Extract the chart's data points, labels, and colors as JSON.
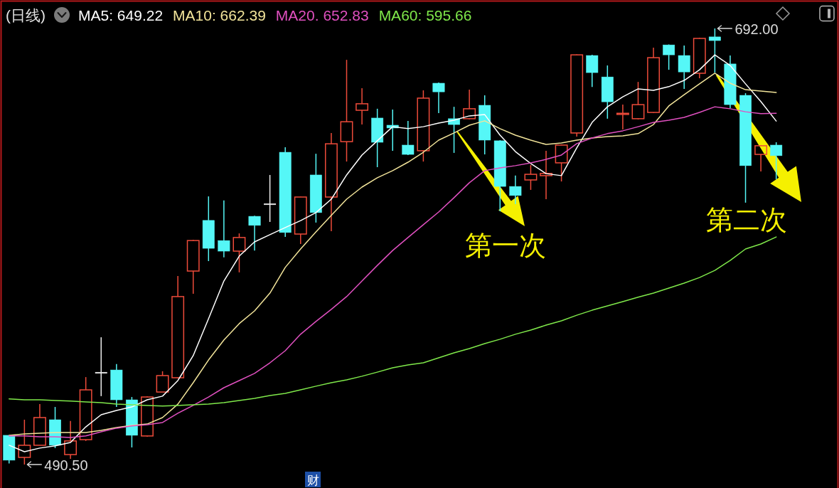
{
  "chart_data": {
    "type": "candlestick",
    "title": "(日线)",
    "legend": "top left",
    "categories": [
      null,
      null,
      null,
      null,
      null,
      null,
      null,
      null,
      null,
      null,
      null,
      null,
      null,
      null,
      null,
      null,
      null,
      null,
      null,
      null,
      null,
      null,
      null,
      null,
      null,
      null,
      null,
      null,
      null,
      null,
      null,
      null,
      null,
      null,
      null,
      null,
      null,
      null,
      null,
      null,
      null,
      null,
      null,
      null,
      null,
      null,
      null,
      null,
      null,
      null,
      null
    ],
    "ohlc": [
      [
        504.0,
        504.0,
        491.0,
        492.5
      ],
      [
        493.8,
        511.2,
        490.5,
        499.4
      ],
      [
        499.4,
        518.4,
        499.4,
        512.2
      ],
      [
        511.2,
        517.1,
        498.1,
        499.4
      ],
      [
        495.1,
        510.6,
        493.1,
        501.4
      ],
      [
        502.0,
        530.9,
        501.4,
        525.0
      ],
      [
        532.9,
        549.3,
        522.1,
        532.9
      ],
      [
        534.2,
        536.9,
        517.1,
        520.4
      ],
      [
        520.4,
        521.7,
        498.4,
        504.0
      ],
      [
        503.7,
        522.0,
        503.4,
        521.7
      ],
      [
        524.0,
        533.6,
        524.0,
        531.6
      ],
      [
        530.6,
        577.6,
        530.3,
        568.1
      ],
      [
        579.9,
        594.3,
        569.4,
        594.0
      ],
      [
        603.3,
        614.4,
        584.5,
        590.4
      ],
      [
        594.0,
        612.5,
        586.2,
        589.1
      ],
      [
        589.1,
        597.3,
        579.3,
        595.4
      ],
      [
        605.2,
        605.5,
        589.4,
        601.0
      ],
      [
        610.8,
        624.3,
        602.6,
        610.8
      ],
      [
        634.8,
        637.1,
        595.7,
        597.7
      ],
      [
        597.0,
        614.3,
        592.4,
        614.1
      ],
      [
        624.3,
        634.1,
        602.3,
        606.9
      ],
      [
        614.1,
        643.7,
        598.3,
        638.7
      ],
      [
        639.7,
        677.5,
        630.5,
        648.9
      ],
      [
        654.2,
        664.4,
        647.6,
        657.2
      ],
      [
        650.6,
        654.9,
        627.9,
        639.4
      ],
      [
        647.3,
        654.5,
        635.5,
        646.0
      ],
      [
        638.1,
        649.3,
        633.5,
        633.8
      ],
      [
        635.5,
        663.4,
        630.5,
        659.8
      ],
      [
        666.7,
        667.0,
        652.9,
        662.7
      ],
      [
        650.3,
        655.8,
        634.5,
        647.6
      ],
      [
        650.3,
        663.7,
        650.0,
        654.9
      ],
      [
        656.5,
        661.1,
        633.8,
        640.4
      ],
      [
        640.1,
        640.4,
        607.5,
        619.0
      ],
      [
        619.0,
        624.0,
        610.8,
        614.8
      ],
      [
        622.0,
        628.9,
        617.4,
        624.6
      ],
      [
        624.0,
        635.5,
        613.1,
        625.0
      ],
      [
        629.9,
        638.4,
        621.3,
        638.1
      ],
      [
        643.7,
        680.0,
        642.0,
        679.8
      ],
      [
        679.5,
        679.8,
        665.0,
        671.6
      ],
      [
        669.6,
        674.9,
        650.3,
        658.1
      ],
      [
        652.3,
        656.8,
        645.3,
        652.8
      ],
      [
        650.3,
        667.3,
        650.0,
        656.8
      ],
      [
        653.2,
        683.1,
        653.0,
        678.5
      ],
      [
        684.4,
        684.6,
        672.9,
        679.8
      ],
      [
        679.5,
        684.1,
        664.1,
        671.9
      ],
      [
        671.3,
        687.7,
        669.0,
        687.4
      ],
      [
        688.1,
        692.0,
        671.6,
        686.4
      ],
      [
        675.6,
        679.5,
        655.2,
        656.8
      ],
      [
        661.1,
        662.1,
        611.5,
        628.6
      ],
      [
        633.8,
        638.0,
        625.9,
        637.8
      ],
      [
        638.1,
        639.4,
        622.3,
        633.2
      ]
    ],
    "colors": [
      "#55f7f7",
      "#ee4b3a",
      "#ee4b3a",
      "#55f7f7",
      "#ee4b3a",
      "#ee4b3a",
      "#eeeeee",
      "#55f7f7",
      "#55f7f7",
      "#ee4b3a",
      "#ee4b3a",
      "#ee4b3a",
      "#ee4b3a",
      "#55f7f7",
      "#55f7f7",
      "#ee4b3a",
      "#55f7f7",
      "#eeeeee",
      "#55f7f7",
      "#ee4b3a",
      "#55f7f7",
      "#ee4b3a",
      "#ee4b3a",
      "#ee4b3a",
      "#55f7f7",
      "#55f7f7",
      "#55f7f7",
      "#ee4b3a",
      "#55f7f7",
      "#55f7f7",
      "#ee4b3a",
      "#55f7f7",
      "#55f7f7",
      "#55f7f7",
      "#ee4b3a",
      "#ee4b3a",
      "#ee4b3a",
      "#ee4b3a",
      "#55f7f7",
      "#55f7f7",
      "#ee4b3a",
      "#ee4b3a",
      "#ee4b3a",
      "#55f7f7",
      "#55f7f7",
      "#ee4b3a",
      "#55f7f7",
      "#55f7f7",
      "#55f7f7",
      "#ee4b3a",
      "#55f7f7"
    ],
    "series": [
      {
        "name": "MA5: 649.22",
        "type": "line",
        "color": "#ffffff",
        "values": [
          499.4,
          496.4,
          498.1,
          499.1,
          500.7,
          507.9,
          513.5,
          515.5,
          517.1,
          520.4,
          522.1,
          529.3,
          540.8,
          557.9,
          575.3,
          586.8,
          593.4,
          596.7,
          600.0,
          603.2,
          606.9,
          613.1,
          624.3,
          633.5,
          640.1,
          646.6,
          645.7,
          646.6,
          648.3,
          649.6,
          651.6,
          652.2,
          642.7,
          635.1,
          629.6,
          624.9,
          624.0,
          636.8,
          648.6,
          655.8,
          660.4,
          664.1,
          663.4,
          665.1,
          668.0,
          672.9,
          679.8,
          674.9,
          666.4,
          658.2,
          649.22
        ]
      },
      {
        "name": "MA10: 662.39",
        "type": "line",
        "color": "#f2e49a",
        "values": [
          504.0,
          504.6,
          505.0,
          505.3,
          505.3,
          505.3,
          506.3,
          507.6,
          508.6,
          509.2,
          512.2,
          518.4,
          528.3,
          538.8,
          548.0,
          555.6,
          561.5,
          569.7,
          581.6,
          590.1,
          598.0,
          605.6,
          613.1,
          618.7,
          623.0,
          626.3,
          630.2,
          634.8,
          640.4,
          643.7,
          647.3,
          649.3,
          645.7,
          642.7,
          640.4,
          638.4,
          639.1,
          640.4,
          641.4,
          642.0,
          642.4,
          643.4,
          647.6,
          656.2,
          661.4,
          666.4,
          671.3,
          666.7,
          663.7,
          663.1,
          662.39
        ]
      },
      {
        "name": "MA20. 652.83",
        "type": "line",
        "color": "#e050c0",
        "values": [
          503.7,
          503.7,
          503.3,
          503.3,
          503.0,
          503.7,
          505.6,
          507.3,
          508.3,
          508.9,
          509.9,
          514.2,
          517.8,
          521.7,
          526.0,
          529.3,
          532.6,
          537.5,
          543.1,
          550.7,
          556.6,
          562.2,
          568.1,
          575.3,
          582.5,
          589.4,
          595.4,
          601.3,
          607.2,
          613.8,
          620.7,
          626.3,
          627.6,
          628.6,
          629.9,
          631.5,
          633.5,
          638.8,
          641.4,
          643.4,
          644.7,
          646.6,
          648.6,
          649.6,
          650.9,
          653.2,
          655.8,
          654.9,
          653.5,
          652.6,
          652.83
        ]
      },
      {
        "name": "MA60: 595.66",
        "type": "line",
        "color": "#7fe84a",
        "values": [
          520.8,
          520.4,
          520.4,
          520.1,
          519.8,
          519.4,
          519.1,
          518.4,
          518.1,
          517.8,
          517.5,
          517.8,
          518.1,
          518.4,
          519.1,
          520.1,
          521.1,
          522.4,
          523.4,
          525.0,
          526.7,
          528.3,
          529.6,
          531.3,
          533.2,
          535.2,
          536.5,
          537.5,
          539.8,
          542.1,
          544.1,
          546.4,
          548.4,
          550.7,
          552.6,
          554.9,
          556.9,
          559.5,
          561.8,
          563.8,
          565.8,
          567.8,
          569.7,
          572.0,
          574.3,
          576.9,
          580.2,
          584.8,
          590.1,
          592.4,
          595.66
        ]
      }
    ],
    "annotations": [
      "692.00",
      "490.50",
      "第一次",
      "第二次",
      "财"
    ]
  }
}
